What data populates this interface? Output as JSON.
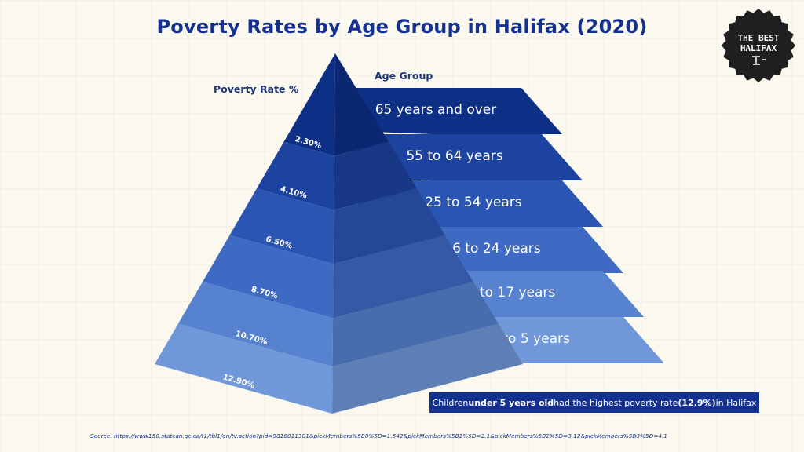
{
  "title": "Poverty Rates by Age Group in Halifax (2020)",
  "logo": {
    "text_line1": "THE BEST",
    "text_line2": "HALIFAX",
    "color": "#1f1f1f"
  },
  "colors": {
    "title": "#14318f",
    "tiers": [
      "#0e2f86",
      "#1c43a0",
      "#2b55b2",
      "#3f6ac3",
      "#5682cf",
      "#7097d9"
    ]
  },
  "chart_data": {
    "type": "pyramid",
    "left_axis_label": "Poverty Rate %",
    "right_axis_label": "Age Group",
    "categories": [
      "65 years and over",
      "55 to 64 years",
      "25 to 54 years",
      "16 to 24 years",
      "6 to 17 years",
      "0 to 5 years"
    ],
    "values": [
      2.3,
      4.1,
      6.5,
      8.7,
      10.7,
      12.9
    ],
    "value_labels": [
      "2.30%",
      "4.10%",
      "6.50%",
      "8.70%",
      "10.70%",
      "12.90%"
    ]
  },
  "callout": {
    "part1": "Children ",
    "part2": "under 5 years old",
    "part3": " had the highest poverty rate ",
    "part4": "(12.9%)",
    "part5": " in Halifax"
  },
  "source": "Source: https://www150.statcan.gc.ca/t1/tbl1/en/tv.action?pid=9810011301&pickMembers%5B0%5D=1.542&pickMembers%5B1%5D=2.1&pickMembers%5B2%5D=3.12&pickMembers%5B3%5D=4.1"
}
